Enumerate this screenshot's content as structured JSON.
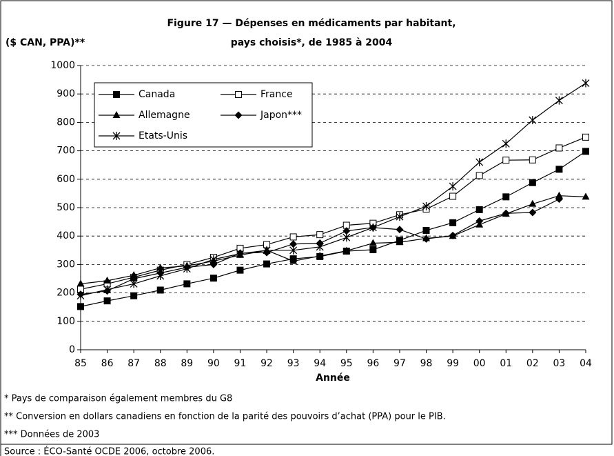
{
  "chart_data": {
    "type": "line",
    "title": [
      "Figure 17 — Dépenses en médicaments par habitant,",
      "pays choisis*, de 1985 à 2004"
    ],
    "ylabel": "($ CAN, PPA)**",
    "xlabel": "Année",
    "categories": [
      "85",
      "86",
      "87",
      "88",
      "89",
      "90",
      "91",
      "92",
      "93",
      "94",
      "95",
      "96",
      "97",
      "98",
      "99",
      "00",
      "01",
      "02",
      "03",
      "04"
    ],
    "ylim": [
      0,
      1000
    ],
    "yticks": [
      0,
      100,
      200,
      300,
      400,
      500,
      600,
      700,
      800,
      900,
      1000
    ],
    "grid": true,
    "legend": "upper left",
    "series": [
      {
        "name": "Canada",
        "color": "#000000",
        "marker": "square-filled",
        "values": [
          152,
          172,
          190,
          210,
          232,
          252,
          280,
          302,
          320,
          328,
          347,
          352,
          385,
          420,
          447,
          493,
          538,
          588,
          635,
          698
        ]
      },
      {
        "name": "France",
        "color": "#000000",
        "marker": "square-open",
        "values": [
          213,
          232,
          255,
          280,
          300,
          325,
          357,
          370,
          397,
          405,
          438,
          445,
          475,
          495,
          540,
          613,
          667,
          668,
          710,
          748
        ]
      },
      {
        "name": "Allemagne",
        "color": "#000000",
        "marker": "triangle",
        "values": [
          232,
          243,
          262,
          288,
          295,
          312,
          333,
          350,
          312,
          330,
          348,
          375,
          378,
          392,
          400,
          440,
          478,
          513,
          542,
          538
        ]
      },
      {
        "name": "Japon***",
        "color": "#000000",
        "marker": "diamond",
        "values": [
          195,
          207,
          250,
          270,
          290,
          300,
          340,
          342,
          372,
          375,
          418,
          430,
          423,
          390,
          402,
          453,
          480,
          483,
          530,
          null
        ]
      },
      {
        "name": "Etats-Unis",
        "color": "#000000",
        "marker": "asterisk",
        "values": [
          190,
          212,
          232,
          260,
          285,
          318,
          338,
          350,
          350,
          362,
          395,
          430,
          468,
          505,
          575,
          660,
          725,
          808,
          877,
          938
        ]
      }
    ],
    "footnotes": [
      "* Pays de comparaison également membres du G8",
      "** Conversion en dollars canadiens en fonction de la parité des pouvoirs d’achat (PPA) pour le PIB.",
      "*** Données de 2003",
      "Source : ÉCO-Santé OCDE 2006, octobre 2006."
    ]
  }
}
